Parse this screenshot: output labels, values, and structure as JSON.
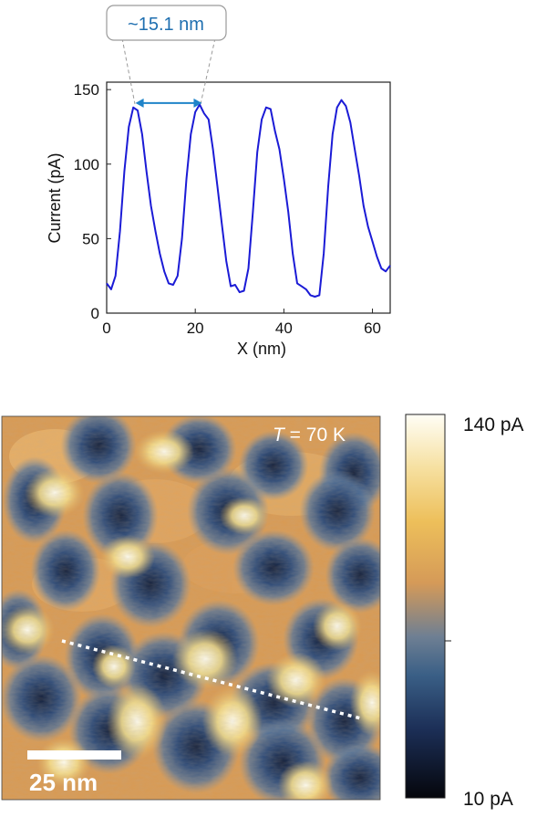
{
  "colors": {
    "line": "#1b1bd6",
    "arrow": "#1f84c9",
    "callout_text": "#1f6fb0",
    "dashed": "#ffffff"
  },
  "chart_data": [
    {
      "type": "line",
      "title": "",
      "xlabel": "X (nm)",
      "ylabel": "Current (pA)",
      "xlim": [
        0,
        64
      ],
      "ylim": [
        0,
        155
      ],
      "xticks": [
        0,
        20,
        40,
        60
      ],
      "yticks": [
        0,
        50,
        100,
        150
      ],
      "grid": false,
      "annotation": {
        "text": "~15.1 nm",
        "from_x": 6.5,
        "to_x": 21.5,
        "at_y": 141
      },
      "series": [
        {
          "x": [
            0,
            1,
            2,
            3,
            4,
            5,
            6,
            7,
            8,
            9,
            10,
            11,
            12,
            13,
            14,
            15,
            16,
            17,
            18,
            19,
            20,
            21,
            22,
            23,
            24,
            25,
            26,
            27,
            28,
            29,
            30,
            31,
            32,
            33,
            34,
            35,
            36,
            37,
            38,
            39,
            40,
            41,
            42,
            43,
            44,
            45,
            46,
            47,
            48,
            49,
            50,
            51,
            52,
            53,
            54,
            55,
            56,
            57,
            58,
            59,
            60,
            61,
            62,
            63,
            64
          ],
          "y": [
            20,
            16,
            25,
            55,
            95,
            125,
            138,
            136,
            120,
            95,
            72,
            55,
            40,
            28,
            20,
            19,
            25,
            50,
            90,
            120,
            135,
            140,
            134,
            130,
            110,
            85,
            60,
            35,
            18,
            19,
            14,
            15,
            30,
            68,
            108,
            130,
            138,
            137,
            122,
            110,
            90,
            68,
            40,
            20,
            18,
            16,
            12,
            11,
            12,
            40,
            85,
            120,
            138,
            143,
            139,
            128,
            110,
            92,
            72,
            58,
            48,
            38,
            30,
            28,
            32
          ]
        }
      ]
    },
    {
      "type": "heatmap",
      "title": "",
      "annotation": "T = 70 K",
      "colorbar": {
        "max_label": "140 pA",
        "min_label": "10 pA",
        "min": 10,
        "max": 140
      },
      "scale_bar_label": "25 nm"
    }
  ],
  "texts": {
    "callout": "~15.1 nm",
    "temperature_symbol": "T",
    "temperature_value": " = 70 K",
    "scale_bar": "25 nm",
    "colorbar_max": "140 pA",
    "colorbar_min": "10 pA"
  }
}
